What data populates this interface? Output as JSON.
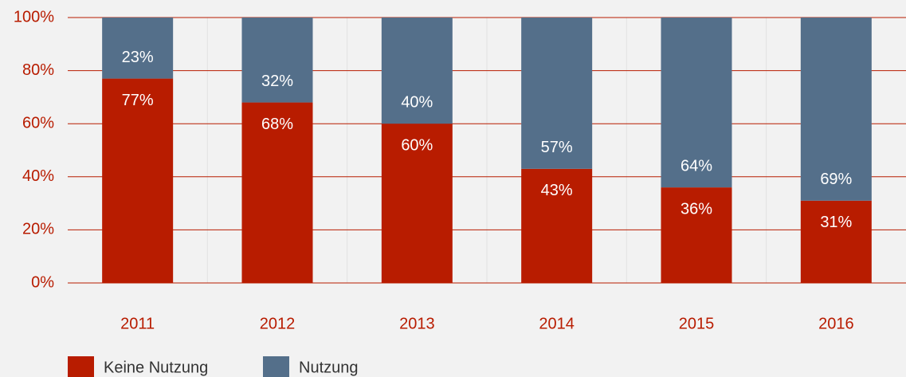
{
  "chart_data": {
    "type": "stacked_bar",
    "categories": [
      "2011",
      "2012",
      "2013",
      "2014",
      "2015",
      "2016"
    ],
    "series": [
      {
        "name": "Keine Nutzung",
        "color": "#b81c00",
        "values": [
          77,
          68,
          60,
          43,
          36,
          31
        ],
        "value_labels": [
          "77%",
          "68%",
          "60%",
          "43%",
          "36%",
          "31%"
        ]
      },
      {
        "name": "Nutzung",
        "color": "#546f8a",
        "values": [
          23,
          32,
          40,
          57,
          64,
          69
        ],
        "value_labels": [
          "23%",
          "32%",
          "40%",
          "57%",
          "64%",
          "69%"
        ]
      }
    ],
    "ylim": [
      0,
      100
    ],
    "yticks": [
      {
        "value": 0,
        "label": "0%"
      },
      {
        "value": 20,
        "label": "20%"
      },
      {
        "value": 40,
        "label": "40%"
      },
      {
        "value": 60,
        "label": "60%"
      },
      {
        "value": 80,
        "label": "80%"
      },
      {
        "value": 100,
        "label": "100%"
      }
    ],
    "grid": true,
    "axis_color": "#b81c00",
    "label_color": "#ffffff"
  }
}
